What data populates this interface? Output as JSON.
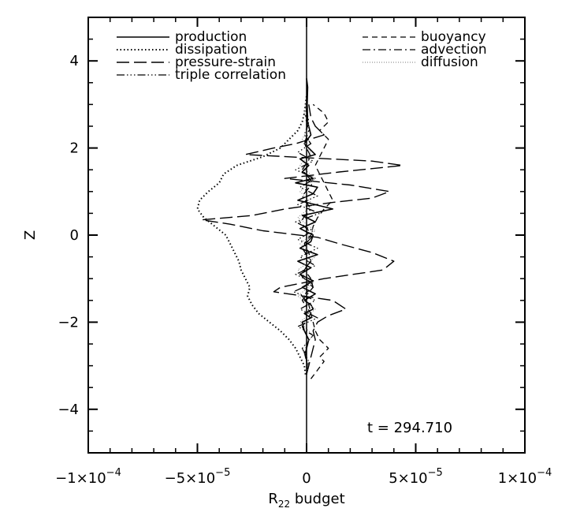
{
  "chart_data": {
    "type": "line",
    "title": "",
    "xlabel": "R22 budget",
    "xlabel_main": "R",
    "xlabel_sub": "22",
    "xlabel_rest": " budget",
    "ylabel": "Z",
    "xlim": [
      -0.0001,
      0.0001
    ],
    "ylim": [
      -5,
      5
    ],
    "grid": false,
    "legend_position": "top",
    "annotation": "t = 294.710",
    "x_ticks": [
      {
        "value": -0.0001,
        "label": "−1×10",
        "exp": "−4"
      },
      {
        "value": -5e-05,
        "label": "−5×10",
        "exp": "−5"
      },
      {
        "value": 0,
        "label": "0",
        "exp": ""
      },
      {
        "value": 5e-05,
        "label": "5×10",
        "exp": "−5"
      },
      {
        "value": 0.0001,
        "label": "1×10",
        "exp": "−4"
      }
    ],
    "y_ticks": [
      {
        "value": -4,
        "label": "−4"
      },
      {
        "value": -2,
        "label": "−2"
      },
      {
        "value": 0,
        "label": "0"
      },
      {
        "value": 2,
        "label": "2"
      },
      {
        "value": 4,
        "label": "4"
      }
    ],
    "series": [
      {
        "name": "production",
        "dash": "solid",
        "z": [
          -3.2,
          -3.0,
          -2.7,
          -2.4,
          -2.2,
          -2.0,
          -1.9,
          -1.8,
          -1.7,
          -1.6,
          -1.5,
          -1.35,
          -1.2,
          -1.05,
          -0.9,
          -0.75,
          -0.6,
          -0.45,
          -0.3,
          -0.15,
          0.0,
          0.15,
          0.3,
          0.45,
          0.6,
          0.7,
          0.8,
          0.95,
          1.1,
          1.2,
          1.3,
          1.45,
          1.6,
          1.75,
          1.85,
          1.95,
          2.1,
          2.3,
          2.6,
          3.0,
          3.4,
          3.6
        ],
        "x": [
          0,
          3e-07,
          -5e-07,
          1e-06,
          -1e-06,
          -2e-06,
          2e-06,
          -1e-06,
          3e-06,
          2e-06,
          -1e-06,
          4e-06,
          -2e-06,
          3e-06,
          -3e-06,
          2e-06,
          -4e-06,
          5e-06,
          -3e-06,
          2e-06,
          3e-06,
          -3e-06,
          4e-06,
          -2e-06,
          1.2e-05,
          4e-06,
          -4e-06,
          3e-06,
          5e-06,
          -5e-06,
          3e-06,
          -2e-06,
          1e-06,
          -3e-06,
          4e-06,
          2e-06,
          -1e-06,
          2e-06,
          5e-07,
          3e-07,
          5e-07,
          0
        ]
      },
      {
        "name": "dissipation",
        "dash": "dotted",
        "z": [
          -3.2,
          -3.0,
          -2.8,
          -2.6,
          -2.4,
          -2.2,
          -2.0,
          -1.8,
          -1.6,
          -1.4,
          -1.2,
          -1.0,
          -0.8,
          -0.6,
          -0.4,
          -0.2,
          0.0,
          0.2,
          0.4,
          0.6,
          0.8,
          1.0,
          1.2,
          1.4,
          1.6,
          1.8,
          2.0,
          2.2,
          2.4,
          2.6,
          2.8,
          3.0,
          3.2
        ],
        "x": [
          -5e-07,
          -1e-06,
          -3e-06,
          -5e-06,
          -8e-06,
          -1.2e-05,
          -1.7e-05,
          -2.2e-05,
          -2.5e-05,
          -2.7e-05,
          -2.6e-05,
          -2.8e-05,
          -3e-05,
          -3.1e-05,
          -3.3e-05,
          -3.5e-05,
          -3.7e-05,
          -4.2e-05,
          -4.7e-05,
          -5e-05,
          -4.9e-05,
          -4.5e-05,
          -4e-05,
          -3.8e-05,
          -3.2e-05,
          -2e-05,
          -1.2e-05,
          -8e-06,
          -4e-06,
          -2e-06,
          -1e-06,
          -5e-07,
          0
        ]
      },
      {
        "name": "pressure-strain",
        "dash": "longdash",
        "z": [
          -3.2,
          -3.0,
          -2.8,
          -2.6,
          -2.4,
          -2.2,
          -2.0,
          -1.85,
          -1.7,
          -1.5,
          -1.3,
          -1.2,
          -1.0,
          -0.8,
          -0.6,
          -0.4,
          -0.2,
          -0.05,
          0.1,
          0.25,
          0.35,
          0.45,
          0.6,
          0.75,
          0.85,
          1.0,
          1.15,
          1.3,
          1.45,
          1.6,
          1.7,
          1.85,
          2.0,
          2.1,
          2.3,
          2.5,
          2.7,
          3.0
        ],
        "x": [
          0,
          1e-06,
          2e-06,
          3e-06,
          4e-06,
          3e-06,
          5e-06,
          1e-05,
          1.8e-05,
          1.2e-05,
          -1.5e-05,
          -1.2e-05,
          8e-06,
          3.5e-05,
          4e-05,
          3e-05,
          1.5e-05,
          5e-06,
          -2e-05,
          -3.5e-05,
          -4.8e-05,
          -2.5e-05,
          -1e-05,
          1.2e-05,
          3e-05,
          3.8e-05,
          2e-05,
          -1e-05,
          1.5e-05,
          4.4e-05,
          3e-05,
          -2.8e-05,
          -1.5e-05,
          -5e-06,
          8e-06,
          4e-06,
          2e-06,
          1e-06
        ]
      },
      {
        "name": "triple correlation",
        "dash": "dashdotdot",
        "z": [
          -3.2,
          -2.9,
          -2.6,
          -2.3,
          -2.1,
          -1.9,
          -1.7,
          -1.5,
          -1.3,
          -1.1,
          -0.9,
          -0.7,
          -0.5,
          -0.3,
          -0.1,
          0.1,
          0.3,
          0.5,
          0.7,
          0.9,
          1.1,
          1.3,
          1.5,
          1.7,
          1.9,
          2.1,
          2.3,
          2.6,
          2.9,
          3.2
        ],
        "x": [
          0,
          1e-06,
          -2e-06,
          3e-06,
          -4e-06,
          5e-06,
          -3e-06,
          4e-06,
          -6e-06,
          3e-06,
          -5e-06,
          4e-06,
          -3e-06,
          5e-06,
          -4e-06,
          3e-06,
          -5e-06,
          6e-06,
          -4e-06,
          5e-06,
          -3e-06,
          4e-06,
          -5e-06,
          3e-06,
          -4e-06,
          2e-06,
          -1e-06,
          1e-06,
          0,
          0
        ]
      },
      {
        "name": "buoyancy",
        "dash": "shortdash",
        "z": [
          -3.3,
          -3.1,
          -2.9,
          -2.8,
          -2.6,
          -2.4,
          -2.2,
          -2.0,
          -1.8,
          -1.6,
          -1.4,
          -1.2,
          -1.0,
          -0.8,
          -0.6,
          -0.4,
          -0.2,
          0.0,
          0.2,
          0.4,
          0.6,
          0.8,
          1.0,
          1.2,
          1.4,
          1.6,
          1.8,
          2.0,
          2.2,
          2.4,
          2.6,
          2.8,
          3.0
        ],
        "x": [
          2e-06,
          5e-06,
          8e-06,
          6e-06,
          1e-05,
          6e-06,
          4e-06,
          3e-06,
          2e-06,
          1e-06,
          -2e-06,
          3e-06,
          2e-06,
          -1e-06,
          2e-06,
          1e-06,
          -1e-06,
          2e-06,
          3e-06,
          5e-06,
          8e-06,
          1.2e-05,
          1e-05,
          8e-06,
          6e-06,
          4e-06,
          6e-06,
          8e-06,
          1e-05,
          6e-06,
          1e-05,
          8e-06,
          3e-06
        ]
      },
      {
        "name": "advection",
        "dash": "dashdot",
        "z": [
          -3.2,
          -3.0,
          -2.7,
          -2.4,
          -2.1,
          -1.8,
          -1.5,
          -1.2,
          -0.9,
          -0.6,
          -0.3,
          0.0,
          0.3,
          0.6,
          0.9,
          1.2,
          1.5,
          1.8,
          2.1,
          2.4,
          2.7,
          3.0,
          3.2
        ],
        "x": [
          0,
          5e-07,
          -1e-06,
          1e-06,
          -2e-06,
          2e-06,
          -2e-06,
          3e-06,
          -3e-06,
          2e-06,
          -2e-06,
          3e-06,
          -3e-06,
          2e-06,
          -2e-06,
          3e-06,
          -2e-06,
          2e-06,
          -1e-06,
          1e-06,
          -5e-07,
          3e-07,
          0
        ]
      },
      {
        "name": "diffusion",
        "dash": "finedot",
        "z": [
          -3.2,
          -2.9,
          -2.6,
          -2.3,
          -2.0,
          -1.7,
          -1.4,
          -1.1,
          -0.8,
          -0.5,
          -0.2,
          0.1,
          0.4,
          0.7,
          1.0,
          1.3,
          1.6,
          1.9,
          2.2,
          2.5,
          2.8,
          3.1
        ],
        "x": [
          0,
          1e-06,
          -2e-06,
          3e-06,
          -3e-06,
          4e-06,
          -4e-06,
          3e-06,
          -4e-06,
          4e-06,
          -3e-06,
          4e-06,
          -4e-06,
          3e-06,
          -3e-06,
          4e-06,
          -3e-06,
          2e-06,
          -2e-06,
          1e-06,
          -1e-06,
          0
        ]
      }
    ]
  }
}
